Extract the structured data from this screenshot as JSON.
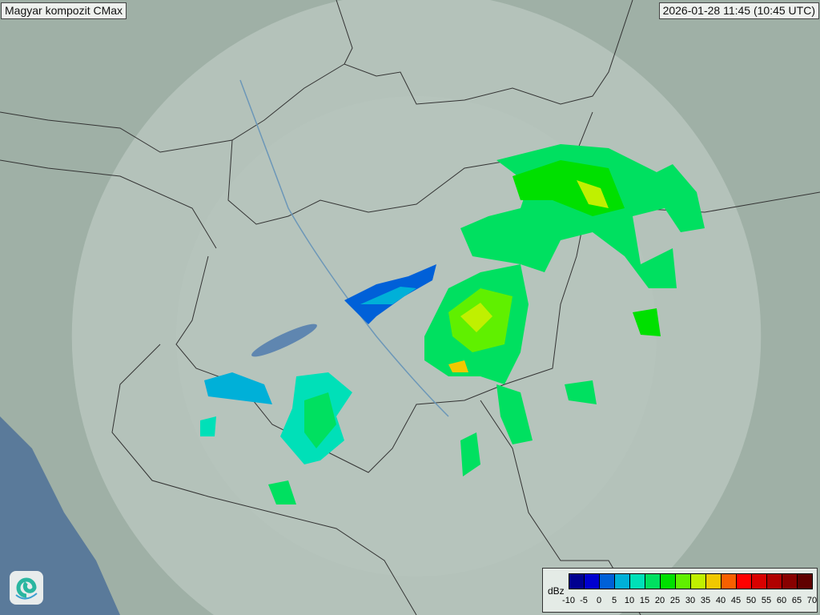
{
  "header": {
    "title": "Magyar kompozit  CMax",
    "timestamp": "2026-01-28 11:45 (10:45 UTC)"
  },
  "legend": {
    "unit": "dBz",
    "ticks": [
      "-10",
      "-5",
      "0",
      "5",
      "10",
      "15",
      "20",
      "25",
      "30",
      "35",
      "40",
      "45",
      "50",
      "55",
      "60",
      "65",
      "70"
    ],
    "colors": [
      "#000090",
      "#0000d0",
      "#0060d8",
      "#00b0d8",
      "#00e0b8",
      "#00e060",
      "#00e000",
      "#60f000",
      "#c0f000",
      "#f0c800",
      "#f86000",
      "#ff0000",
      "#d80000",
      "#b00000",
      "#880000",
      "#600000"
    ]
  },
  "logo": {
    "name": "omsz-logo",
    "icon": "spiral-logo-icon"
  }
}
